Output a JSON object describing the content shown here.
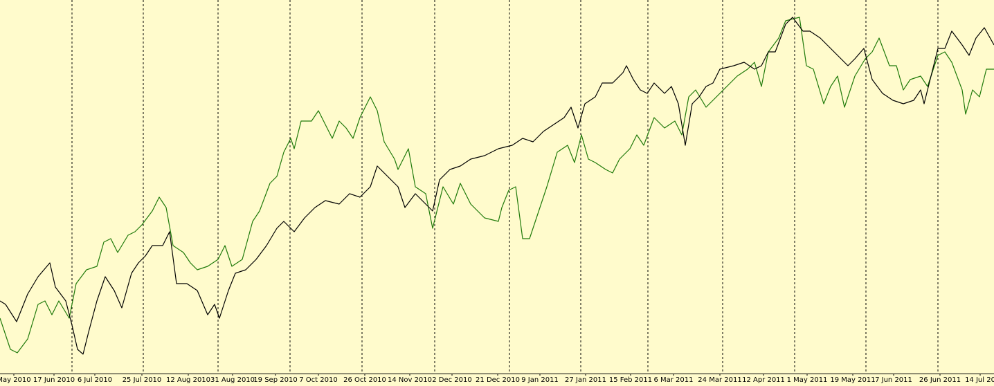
{
  "chart_data": {
    "type": "line",
    "background": "#fffbcc",
    "xlim": [
      0,
      1436
    ],
    "ylim": [
      0,
      540
    ],
    "xticks": [
      {
        "value": 20,
        "label": "May 2010"
      },
      {
        "value": 78,
        "label": "17 Jun 2010"
      },
      {
        "value": 137,
        "label": "6 Jul 2010"
      },
      {
        "value": 205,
        "label": "25 Jul 2010"
      },
      {
        "value": 272,
        "label": "12 Aug 2010"
      },
      {
        "value": 336,
        "label": "31 Aug 2010"
      },
      {
        "value": 398,
        "label": "19 Sep 2010"
      },
      {
        "value": 460,
        "label": "7 Oct 2010"
      },
      {
        "value": 527,
        "label": "26 Oct 2010"
      },
      {
        "value": 592,
        "label": "14 Nov 2010"
      },
      {
        "value": 653,
        "label": "2 Dec 2010"
      },
      {
        "value": 719,
        "label": "21 Dec 2010"
      },
      {
        "value": 780,
        "label": "9 Jan 2011"
      },
      {
        "value": 846,
        "label": "27 Jan 2011"
      },
      {
        "value": 911,
        "label": "15 Feb 2011"
      },
      {
        "value": 973,
        "label": "6 Mar 2011"
      },
      {
        "value": 1040,
        "label": "24 Mar 2011"
      },
      {
        "value": 1103,
        "label": "12 Apr 2011"
      },
      {
        "value": 1166,
        "label": "1 May 2011"
      },
      {
        "value": 1232,
        "label": "19 May 2011"
      },
      {
        "value": 1291,
        "label": "7 Jun 2011"
      },
      {
        "value": 1358,
        "label": "26 Jun 2011"
      },
      {
        "value": 1416,
        "label": "14 Jul 20"
      }
    ],
    "series": [
      {
        "color": "#000000",
        "x": [
          0,
          8,
          24,
          40,
          55,
          72,
          80,
          95,
          104,
          112,
          120,
          128,
          140,
          152,
          165,
          176,
          190,
          200,
          210,
          220,
          235,
          245,
          255,
          270,
          285,
          300,
          310,
          317,
          330,
          340,
          355,
          370,
          385,
          400,
          410,
          425,
          440,
          455,
          470,
          490,
          505,
          520,
          535,
          545,
          560,
          575,
          585,
          600,
          615,
          625,
          635,
          650,
          665,
          680,
          700,
          720,
          740,
          755,
          770,
          785,
          800,
          815,
          825,
          835,
          845,
          860,
          870,
          885,
          900,
          905,
          915,
          925,
          935,
          945,
          960,
          970,
          980,
          990,
          1000,
          1010,
          1020,
          1030,
          1040,
          1060,
          1075,
          1090,
          1100,
          1110,
          1120,
          1135,
          1145,
          1160,
          1170,
          1185,
          1200,
          1215,
          1225,
          1235,
          1248,
          1260,
          1275,
          1290,
          1305,
          1320,
          1330,
          1335,
          1355,
          1365,
          1375,
          1390,
          1400,
          1410,
          1422,
          1436
        ],
        "values": [
          105,
          100,
          75,
          115,
          140,
          160,
          125,
          105,
          70,
          35,
          28,
          60,
          105,
          140,
          120,
          95,
          145,
          160,
          170,
          185,
          185,
          205,
          130,
          130,
          120,
          85,
          100,
          80,
          120,
          145,
          150,
          165,
          185,
          210,
          220,
          205,
          225,
          240,
          250,
          245,
          260,
          255,
          270,
          300,
          285,
          270,
          240,
          260,
          245,
          235,
          280,
          295,
          300,
          310,
          315,
          325,
          330,
          340,
          335,
          350,
          360,
          370,
          385,
          355,
          390,
          400,
          420,
          420,
          435,
          445,
          425,
          410,
          405,
          420,
          405,
          415,
          390,
          330,
          390,
          400,
          415,
          420,
          440,
          445,
          450,
          440,
          445,
          465,
          465,
          505,
          515,
          495,
          495,
          485,
          470,
          455,
          445,
          455,
          470,
          425,
          405,
          395,
          390,
          395,
          410,
          390,
          470,
          470,
          495,
          475,
          460,
          485,
          500,
          475
        ]
      },
      {
        "color": "#1f7a0a",
        "x": [
          0,
          15,
          25,
          40,
          55,
          65,
          75,
          85,
          100,
          110,
          125,
          140,
          150,
          160,
          170,
          185,
          195,
          205,
          220,
          230,
          240,
          250,
          265,
          275,
          285,
          300,
          315,
          325,
          335,
          350,
          365,
          375,
          390,
          400,
          410,
          420,
          425,
          435,
          450,
          460,
          470,
          480,
          490,
          500,
          510,
          520,
          535,
          545,
          555,
          570,
          575,
          590,
          600,
          615,
          625,
          640,
          655,
          665,
          680,
          700,
          720,
          725,
          735,
          745,
          755,
          765,
          780,
          790,
          805,
          820,
          830,
          840,
          850,
          860,
          875,
          885,
          895,
          910,
          920,
          930,
          945,
          960,
          975,
          985,
          995,
          1005,
          1020,
          1035,
          1050,
          1065,
          1080,
          1090,
          1100,
          1110,
          1125,
          1135,
          1155,
          1165,
          1175,
          1190,
          1200,
          1210,
          1220,
          1235,
          1250,
          1260,
          1270,
          1285,
          1295,
          1305,
          1315,
          1330,
          1340,
          1355,
          1365,
          1375,
          1390,
          1395,
          1405,
          1415,
          1425,
          1436
        ],
        "values": [
          80,
          35,
          30,
          50,
          100,
          105,
          85,
          105,
          80,
          130,
          150,
          155,
          190,
          195,
          175,
          200,
          205,
          215,
          235,
          255,
          240,
          185,
          175,
          160,
          150,
          155,
          165,
          185,
          155,
          165,
          220,
          235,
          275,
          285,
          320,
          340,
          325,
          365,
          365,
          380,
          360,
          340,
          365,
          355,
          340,
          370,
          400,
          380,
          335,
          310,
          295,
          325,
          270,
          260,
          210,
          270,
          245,
          275,
          245,
          225,
          220,
          240,
          265,
          270,
          195,
          195,
          240,
          270,
          320,
          330,
          305,
          345,
          310,
          305,
          295,
          290,
          310,
          325,
          345,
          330,
          370,
          355,
          365,
          345,
          400,
          410,
          385,
          400,
          415,
          430,
          440,
          450,
          415,
          465,
          485,
          510,
          515,
          445,
          440,
          390,
          415,
          430,
          385,
          430,
          455,
          465,
          485,
          445,
          445,
          410,
          425,
          430,
          415,
          460,
          465,
          450,
          410,
          375,
          410,
          400,
          440,
          440
        ]
      }
    ]
  }
}
